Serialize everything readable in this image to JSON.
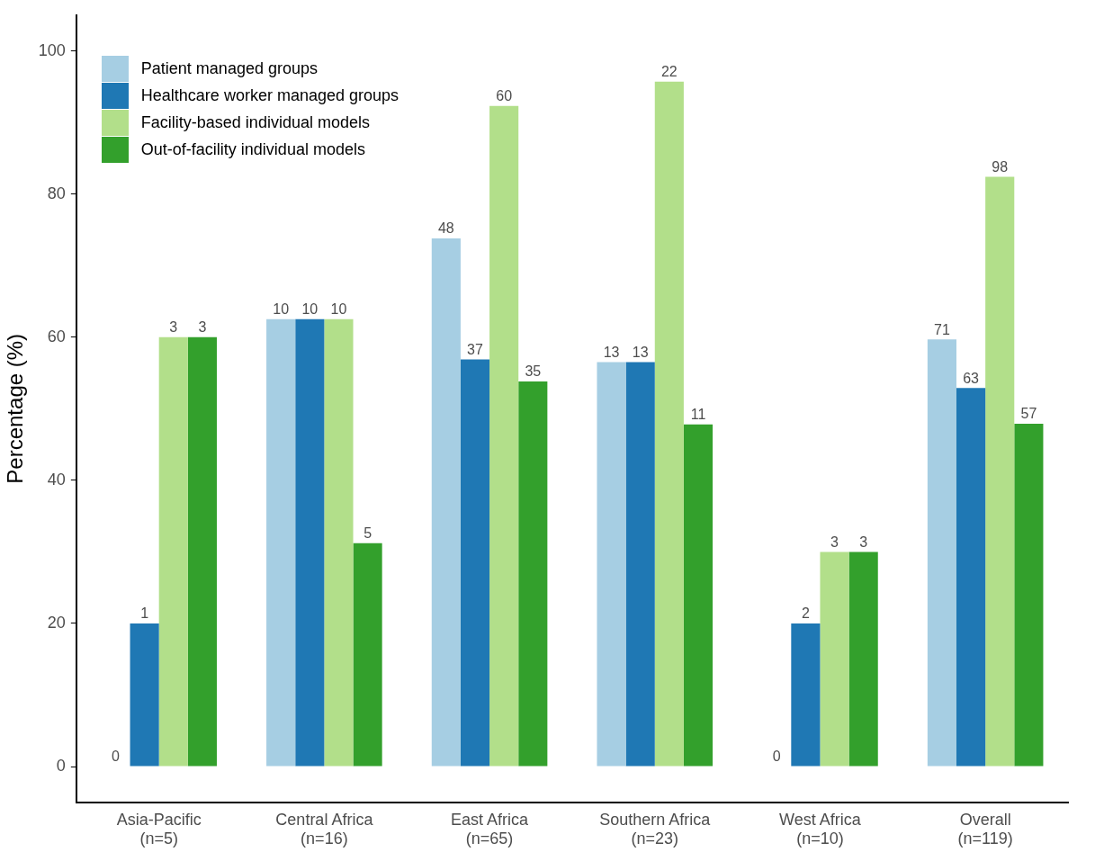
{
  "chart_data": {
    "type": "bar",
    "ylabel": "Percentage (%)",
    "categories": [
      "Asia-Pacific\n(n=5)",
      "Central Africa\n(n=16)",
      "East Africa\n(n=65)",
      "Southern Africa\n(n=23)",
      "West Africa\n(n=10)",
      "Overall\n(n=119)"
    ],
    "series": [
      {
        "name": "Patient managed groups",
        "color": "#a6cee3",
        "values": [
          0,
          62.5,
          73.8,
          56.5,
          0,
          59.7
        ]
      },
      {
        "name": "Healthcare worker managed groups",
        "color": "#1f78b4",
        "values": [
          20,
          62.5,
          56.9,
          56.5,
          20,
          52.9
        ]
      },
      {
        "name": "Facility-based individual models",
        "color": "#b2df8a",
        "values": [
          60,
          62.5,
          92.3,
          95.7,
          30,
          82.4
        ]
      },
      {
        "name": "Out-of-facility individual models",
        "color": "#33a02c",
        "values": [
          60,
          31.2,
          53.8,
          47.8,
          30,
          47.9
        ]
      }
    ],
    "annotations": [
      {
        "text": "0",
        "x": "Asia-Pacific\n(n=5)",
        "y": 0
      },
      {
        "text": "1",
        "x": "Asia-Pacific\n(n=5)",
        "y": 20
      },
      {
        "text": "3",
        "x": "Asia-Pacific\n(n=5)",
        "y": 60
      },
      {
        "text": "3",
        "x": "Asia-Pacific\n(n=5)",
        "y": 60
      },
      {
        "text": "10",
        "x": "Central Africa\n(n=16)",
        "y": 62.5
      },
      {
        "text": "10",
        "x": "Central Africa\n(n=16)",
        "y": 62.5
      },
      {
        "text": "10",
        "x": "Central Africa\n(n=16)",
        "y": 62.5
      },
      {
        "text": "5",
        "x": "Central Africa\n(n=16)",
        "y": 31.2
      },
      {
        "text": "48",
        "x": "East Africa\n(n=65)",
        "y": 73.8
      },
      {
        "text": "37",
        "x": "East Africa\n(n=65)",
        "y": 56.9
      },
      {
        "text": "60",
        "x": "East Africa\n(n=65)",
        "y": 92.3
      },
      {
        "text": "35",
        "x": "East Africa\n(n=65)",
        "y": 53.8
      },
      {
        "text": "13",
        "x": "Southern Africa\n(n=23)",
        "y": 56.5
      },
      {
        "text": "13",
        "x": "Southern Africa\n(n=23)",
        "y": 56.5
      },
      {
        "text": "22",
        "x": "Southern Africa\n(n=23)",
        "y": 95.7
      },
      {
        "text": "11",
        "x": "Southern Africa\n(n=23)",
        "y": 47.8
      },
      {
        "text": "0",
        "x": "West Africa\n(n=10)",
        "y": 0
      },
      {
        "text": "2",
        "x": "West Africa\n(n=10)",
        "y": 20
      },
      {
        "text": "3",
        "x": "West Africa\n(n=10)",
        "y": 30
      },
      {
        "text": "3",
        "x": "West Africa\n(n=10)",
        "y": 30
      },
      {
        "text": "71",
        "x": "Overall\n(n=119)",
        "y": 59.7
      },
      {
        "text": "63",
        "x": "Overall\n(n=119)",
        "y": 52.9
      },
      {
        "text": "98",
        "x": "Overall\n(n=119)",
        "y": 82.4
      },
      {
        "text": "57",
        "x": "Overall\n(n=119)",
        "y": 47.9
      }
    ],
    "ylim": [
      -5,
      105
    ],
    "yticks": [
      0,
      20,
      40,
      60,
      80,
      100
    ],
    "grid": false,
    "legend": "top left"
  }
}
